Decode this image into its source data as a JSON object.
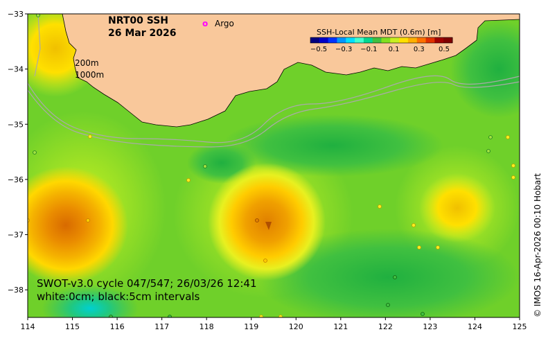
{
  "title": {
    "product": "NRT00 SSH",
    "date": "26 Mar 2026"
  },
  "legend": {
    "argo_symbol": "o",
    "argo_label": "Argo",
    "argo_color": "#ff00ff"
  },
  "isobaths": {
    "line1": "200m",
    "line2": "1000m"
  },
  "colorbar": {
    "title": "SSH-Local Mean MDT (0.6m) [m]",
    "tick_labels": [
      "−0.5",
      "−0.3",
      "−0.1",
      "0.1",
      "0.3",
      "0.5"
    ],
    "colors": [
      "#00007f",
      "#0000c8",
      "#0032ff",
      "#0096ff",
      "#00e0ff",
      "#40ffd0",
      "#00d890",
      "#40c040",
      "#80e020",
      "#c8f020",
      "#ffe000",
      "#ffb000",
      "#ff7000",
      "#e03000",
      "#a00000",
      "#800000"
    ]
  },
  "info": {
    "line1": "SWOT-v3.0 cycle 047/547; 26/03/26 12:41",
    "line2": "white:0cm; black:5cm intervals"
  },
  "copyright": "© IMOS 16-Apr-2026 00:10 Hobart",
  "axes": {
    "x_ticks": [
      "114",
      "115",
      "116",
      "117",
      "118",
      "119",
      "120",
      "121",
      "122",
      "123",
      "124",
      "125"
    ],
    "y_ticks": [
      "−33",
      "−34",
      "−35",
      "−36",
      "−37",
      "−38"
    ],
    "x_range": [
      114,
      125
    ],
    "y_range": [
      -38.5,
      -33
    ]
  },
  "colors": {
    "land": "#f9c89b",
    "sea_base": "#7ed321",
    "warm_core": "#e57a00",
    "cool_core": "#00c48c"
  }
}
